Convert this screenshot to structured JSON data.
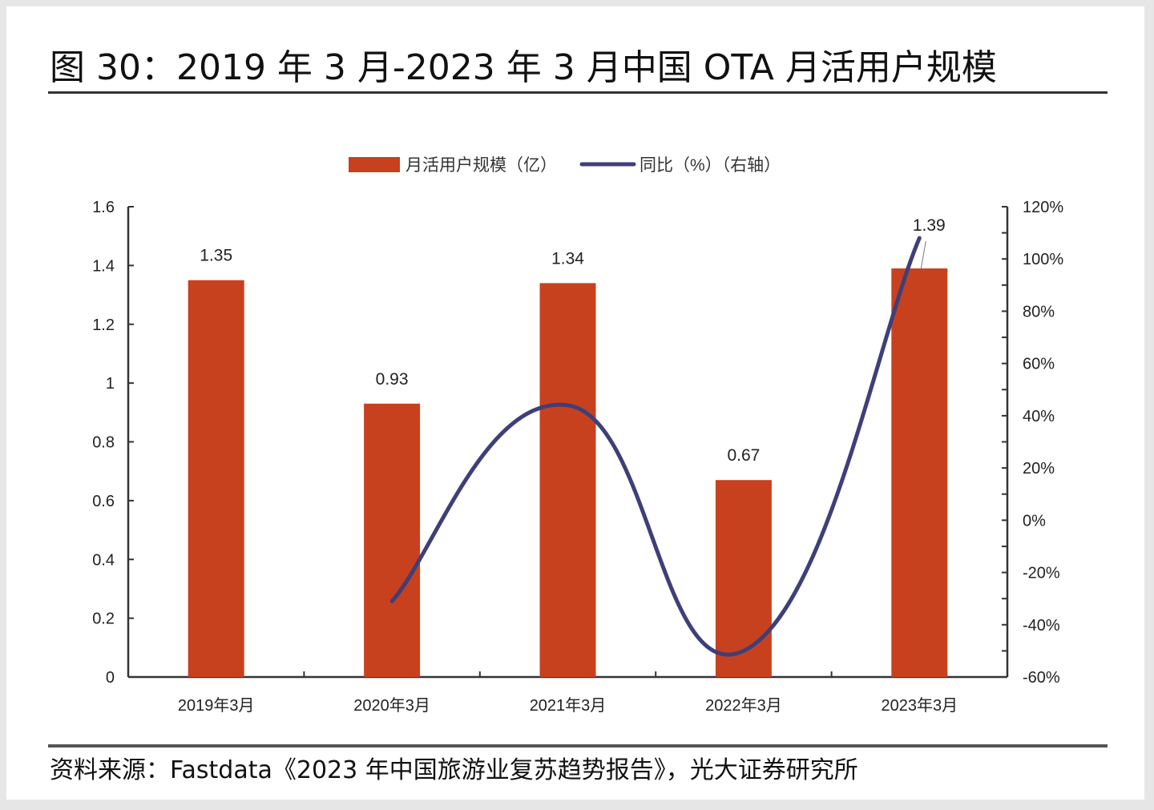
{
  "header": {
    "title": "图 30：2019 年 3 月-2023 年 3 月中国 OTA 月活用户规模"
  },
  "footer": {
    "source": "资料来源：Fastdata《2023 年中国旅游业复苏趋势报告》，光大证券研究所"
  },
  "chart_data": {
    "type": "bar",
    "title": "图 30：2019 年 3 月-2023 年 3 月中国 OTA 月活用户规模",
    "categories": [
      "2019年3月",
      "2020年3月",
      "2021年3月",
      "2022年3月",
      "2023年3月"
    ],
    "series": [
      {
        "name": "月活用户规模（亿）",
        "type": "bar",
        "axis": "left",
        "color": "#c8411f",
        "values": [
          1.35,
          0.93,
          1.34,
          0.67,
          1.39
        ],
        "data_labels": [
          "1.35",
          "0.93",
          "1.34",
          "0.67",
          "1.39"
        ]
      },
      {
        "name": "同比（%）（右轴）",
        "type": "line",
        "axis": "right",
        "smooth": true,
        "color": "#3f3f78",
        "values": [
          null,
          -31,
          44,
          -50,
          108
        ]
      }
    ],
    "legend": {
      "position": "top-center",
      "entries": [
        "月活用户规模（亿）",
        "同比（%）（右轴）"
      ]
    },
    "left_axis": {
      "ylim": [
        0,
        1.6
      ],
      "ticks": [
        "0",
        "0.2",
        "0.4",
        "0.6",
        "0.8",
        "1",
        "1.2",
        "1.4",
        "1.6"
      ],
      "tick_values": [
        0,
        0.2,
        0.4,
        0.6,
        0.8,
        1.0,
        1.2,
        1.4,
        1.6
      ]
    },
    "right_axis": {
      "ylim": [
        -60,
        120
      ],
      "ticks": [
        "-60%",
        "-40%",
        "-20%",
        "0%",
        "20%",
        "40%",
        "60%",
        "80%",
        "100%",
        "120%"
      ],
      "tick_values": [
        -60,
        -40,
        -20,
        0,
        20,
        40,
        60,
        80,
        100,
        120
      ],
      "minor_step": 10
    },
    "xlabel": "",
    "ylabel": "",
    "grid": false
  }
}
